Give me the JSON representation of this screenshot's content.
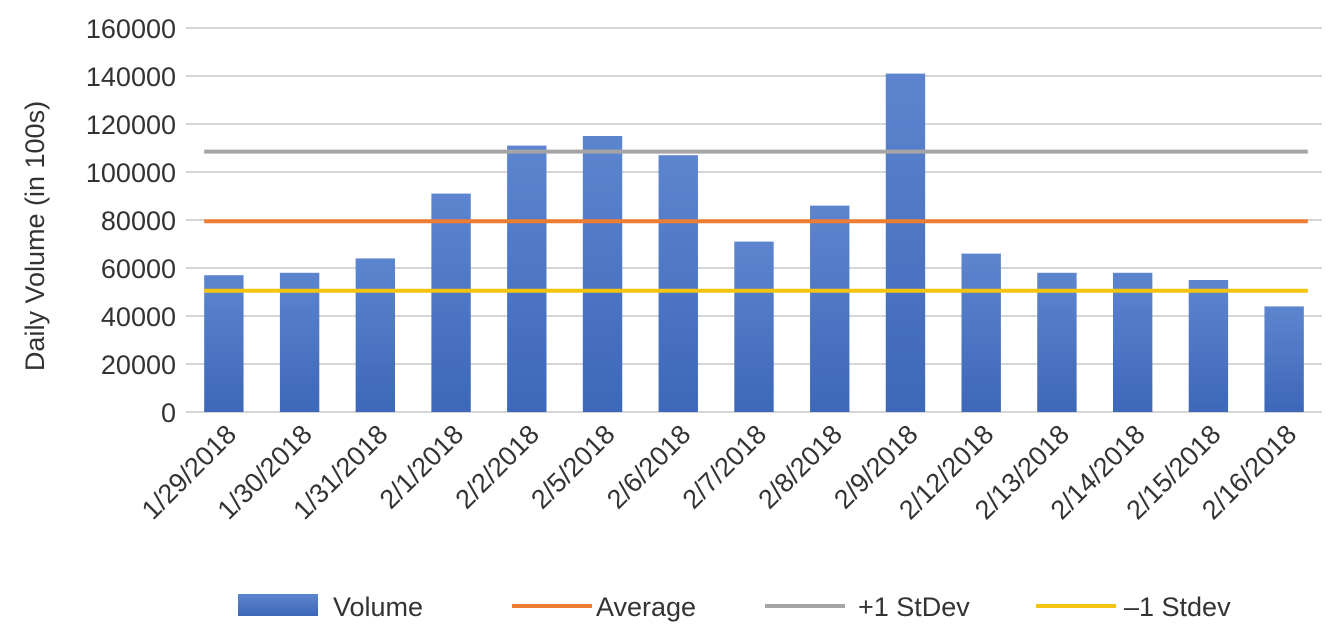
{
  "chart_data": {
    "type": "bar",
    "categories": [
      "1/29/2018",
      "1/30/2018",
      "1/31/2018",
      "2/1/2018",
      "2/2/2018",
      "2/5/2018",
      "2/6/2018",
      "2/7/2018",
      "2/8/2018",
      "2/9/2018",
      "2/12/2018",
      "2/13/2018",
      "2/14/2018",
      "2/15/2018",
      "2/16/2018"
    ],
    "series": [
      {
        "name": "Volume",
        "kind": "bar",
        "color": "#3d67b8",
        "values": [
          57000,
          58000,
          64000,
          91000,
          111000,
          115000,
          107000,
          71000,
          86000,
          141000,
          66000,
          58000,
          58000,
          55000,
          44000
        ]
      },
      {
        "name": "Average",
        "kind": "line",
        "color": "#ed7d31",
        "values": [
          79500,
          79500,
          79500,
          79500,
          79500,
          79500,
          79500,
          79500,
          79500,
          79500,
          79500,
          79500,
          79500,
          79500,
          79500
        ]
      },
      {
        "name": "+1 StDev",
        "kind": "line",
        "color": "#a5a5a5",
        "values": [
          108500,
          108500,
          108500,
          108500,
          108500,
          108500,
          108500,
          108500,
          108500,
          108500,
          108500,
          108500,
          108500,
          108500,
          108500
        ]
      },
      {
        "name": "–1 Stdev",
        "kind": "line",
        "color": "#f5c40f",
        "values": [
          50500,
          50500,
          50500,
          50500,
          50500,
          50500,
          50500,
          50500,
          50500,
          50500,
          50500,
          50500,
          50500,
          50500,
          50500
        ]
      }
    ],
    "title": "",
    "xlabel": "",
    "ylabel": "Daily Volume (in 100s)",
    "ylim": [
      0,
      160000
    ],
    "yticks": [
      0,
      20000,
      40000,
      60000,
      80000,
      100000,
      120000,
      140000,
      160000
    ],
    "grid": true,
    "legend_position": "bottom"
  }
}
